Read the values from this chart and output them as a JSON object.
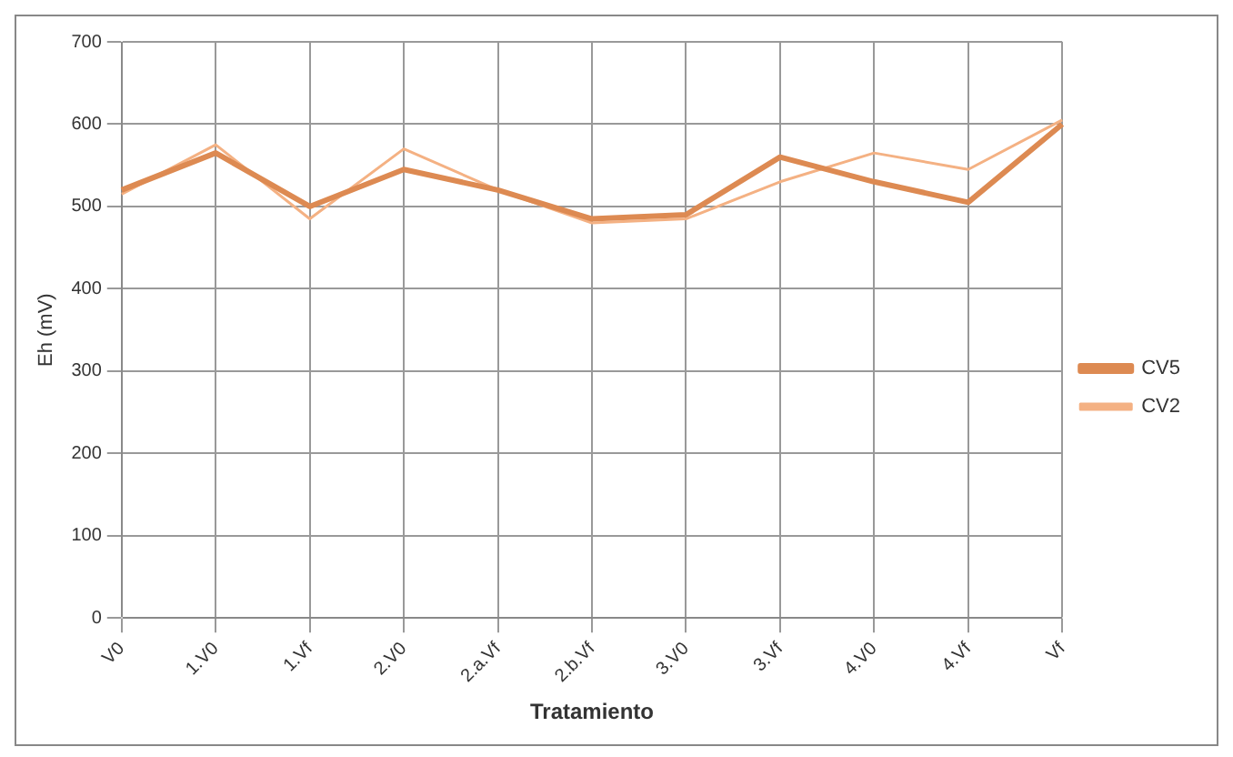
{
  "chart_data": {
    "type": "line",
    "xlabel": "Tratamiento",
    "ylabel": "Eh (mV)",
    "categories": [
      "V0",
      "1.V0",
      "1.Vf",
      "2.V0",
      "2.a.Vf",
      "2.b.Vf",
      "3.V0",
      "3.Vf",
      "4.V0",
      "4.Vf",
      "Vf"
    ],
    "series": [
      {
        "name": "CV5",
        "color": "#dd8a52",
        "values": [
          520,
          565,
          500,
          545,
          520,
          485,
          490,
          560,
          530,
          505,
          600
        ]
      },
      {
        "name": "CV2",
        "color": "#f4b183",
        "values": [
          515,
          575,
          485,
          570,
          520,
          480,
          485,
          530,
          565,
          545,
          605
        ]
      }
    ],
    "ylim": [
      0,
      700
    ],
    "yticks": [
      0,
      100,
      200,
      300,
      400,
      500,
      600,
      700
    ],
    "grid": true,
    "legend": "right",
    "marker": "none"
  }
}
